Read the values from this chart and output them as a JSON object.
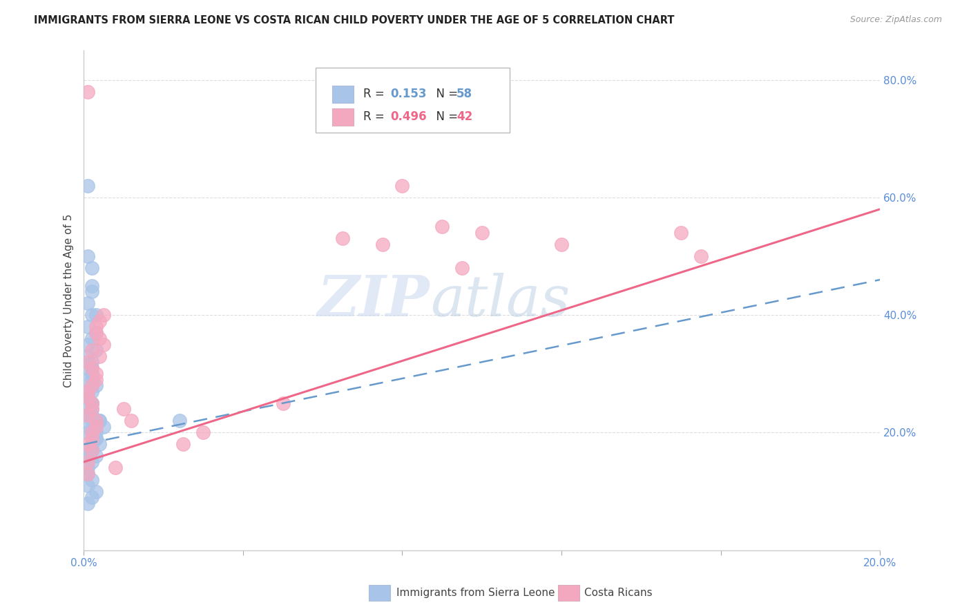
{
  "title": "IMMIGRANTS FROM SIERRA LEONE VS COSTA RICAN CHILD POVERTY UNDER THE AGE OF 5 CORRELATION CHART",
  "source": "Source: ZipAtlas.com",
  "ylabel": "Child Poverty Under the Age of 5",
  "xlim": [
    0.0,
    0.2
  ],
  "ylim": [
    0.0,
    0.85
  ],
  "blue_color": "#a8c4e8",
  "pink_color": "#f4a8c0",
  "blue_line_color": "#6699cc",
  "pink_line_color": "#ee6688",
  "grid_color": "#dddddd",
  "tick_color": "#5b8dd9",
  "blue_x": [
    0.002,
    0.003,
    0.002,
    0.004,
    0.003,
    0.005,
    0.002,
    0.001,
    0.003,
    0.002,
    0.001,
    0.002,
    0.001,
    0.003,
    0.002,
    0.004,
    0.001,
    0.002,
    0.001,
    0.003,
    0.001,
    0.002,
    0.001,
    0.002,
    0.001,
    0.002,
    0.003,
    0.001,
    0.002,
    0.001,
    0.001,
    0.002,
    0.001,
    0.003,
    0.002,
    0.001,
    0.002,
    0.001,
    0.002,
    0.001,
    0.001,
    0.002,
    0.001,
    0.002,
    0.003,
    0.002,
    0.001,
    0.002,
    0.001,
    0.002,
    0.001,
    0.002,
    0.003,
    0.004,
    0.001,
    0.003,
    0.002,
    0.024
  ],
  "blue_y": [
    0.25,
    0.22,
    0.2,
    0.18,
    0.19,
    0.21,
    0.23,
    0.17,
    0.16,
    0.24,
    0.27,
    0.29,
    0.26,
    0.28,
    0.3,
    0.22,
    0.31,
    0.32,
    0.33,
    0.34,
    0.35,
    0.36,
    0.38,
    0.4,
    0.42,
    0.44,
    0.37,
    0.5,
    0.48,
    0.14,
    0.13,
    0.12,
    0.11,
    0.1,
    0.09,
    0.08,
    0.15,
    0.16,
    0.18,
    0.2,
    0.21,
    0.22,
    0.23,
    0.17,
    0.19,
    0.25,
    0.26,
    0.28,
    0.24,
    0.27,
    0.29,
    0.31,
    0.2,
    0.22,
    0.62,
    0.4,
    0.45,
    0.22
  ],
  "pink_x": [
    0.001,
    0.002,
    0.001,
    0.003,
    0.002,
    0.001,
    0.002,
    0.003,
    0.001,
    0.002,
    0.001,
    0.003,
    0.002,
    0.001,
    0.002,
    0.003,
    0.001,
    0.002,
    0.004,
    0.003,
    0.005,
    0.004,
    0.002,
    0.003,
    0.004,
    0.005,
    0.05,
    0.065,
    0.075,
    0.09,
    0.08,
    0.1,
    0.095,
    0.12,
    0.15,
    0.155,
    0.01,
    0.012,
    0.025,
    0.03,
    0.008,
    0.001
  ],
  "pink_y": [
    0.18,
    0.2,
    0.15,
    0.22,
    0.17,
    0.13,
    0.19,
    0.21,
    0.23,
    0.25,
    0.27,
    0.29,
    0.24,
    0.26,
    0.28,
    0.3,
    0.32,
    0.34,
    0.36,
    0.38,
    0.35,
    0.33,
    0.31,
    0.37,
    0.39,
    0.4,
    0.25,
    0.53,
    0.52,
    0.55,
    0.62,
    0.54,
    0.48,
    0.52,
    0.54,
    0.5,
    0.24,
    0.22,
    0.18,
    0.2,
    0.14,
    0.78
  ],
  "blue_trend": [
    0.18,
    0.46
  ],
  "pink_trend": [
    0.15,
    0.58
  ],
  "xtick_positions": [
    0.0,
    0.04,
    0.08,
    0.12,
    0.16,
    0.2
  ],
  "ytick_positions": [
    0.0,
    0.2,
    0.4,
    0.6,
    0.8
  ],
  "ytick_labels": [
    "",
    "20.0%",
    "40.0%",
    "60.0%",
    "80.0%"
  ]
}
